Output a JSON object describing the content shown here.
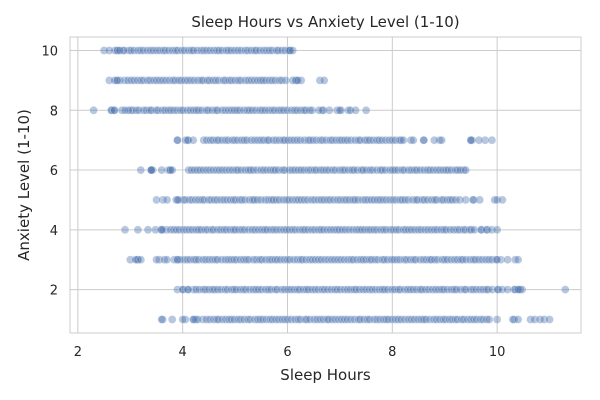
{
  "chart_data": {
    "type": "scatter",
    "title": "Sleep Hours vs Anxiety Level (1-10)",
    "xlabel": "Sleep Hours",
    "ylabel": "Anxiety Level (1-10)",
    "xlim": [
      1.85,
      11.6
    ],
    "ylim": [
      0.55,
      10.45
    ],
    "xticks": [
      2,
      4,
      6,
      8,
      10
    ],
    "yticks": [
      2,
      4,
      6,
      8,
      10
    ],
    "grid": true,
    "legend": "none",
    "point_color": "#4c72b0",
    "point_alpha": 0.4,
    "y_levels": [
      {
        "y": 10,
        "x_min": 2.5,
        "x_max": 6.1,
        "dense_min": 2.9,
        "dense_max": 6.0,
        "outliers": [
          2.5,
          2.6,
          2.75,
          2.8,
          6.05,
          6.1
        ]
      },
      {
        "y": 9,
        "x_min": 2.6,
        "x_max": 6.7,
        "dense_min": 2.9,
        "dense_max": 6.0,
        "outliers": [
          2.6,
          2.7,
          2.75,
          6.1,
          6.2,
          6.7
        ]
      },
      {
        "y": 8,
        "x_min": 2.3,
        "x_max": 7.5,
        "dense_min": 3.0,
        "dense_max": 6.5,
        "outliers": [
          2.3,
          2.7,
          2.9,
          6.6,
          6.8,
          7.0,
          7.2,
          7.3,
          7.5
        ]
      },
      {
        "y": 7,
        "x_min": 3.9,
        "x_max": 9.9,
        "dense_min": 4.4,
        "dense_max": 8.2,
        "outliers": [
          3.9,
          4.1,
          4.2,
          8.4,
          8.6,
          8.8,
          9.5,
          9.9
        ]
      },
      {
        "y": 6,
        "x_min": 3.2,
        "x_max": 9.4,
        "dense_min": 4.1,
        "dense_max": 9.2,
        "outliers": [
          3.2,
          3.4,
          3.6,
          3.8,
          9.3,
          9.4
        ]
      },
      {
        "y": 5,
        "x_min": 3.5,
        "x_max": 10.1,
        "dense_min": 4.0,
        "dense_max": 9.3,
        "outliers": [
          3.5,
          3.7,
          3.9,
          9.4,
          10.0,
          10.1
        ]
      },
      {
        "y": 4,
        "x_min": 2.9,
        "x_max": 10.0,
        "dense_min": 3.7,
        "dense_max": 9.6,
        "outliers": [
          2.9,
          3.6,
          9.7,
          9.8,
          9.9,
          10.0
        ]
      },
      {
        "y": 3,
        "x_min": 3.0,
        "x_max": 10.4,
        "dense_min": 3.9,
        "dense_max": 9.9,
        "outliers": [
          3.0,
          3.1,
          3.2,
          3.5,
          3.7,
          10.0,
          10.2,
          10.4
        ]
      },
      {
        "y": 2,
        "x_min": 3.9,
        "x_max": 11.3,
        "dense_min": 4.2,
        "dense_max": 9.9,
        "outliers": [
          3.9,
          4.0,
          4.1,
          10.1,
          10.2,
          10.4,
          11.3
        ]
      },
      {
        "y": 1,
        "x_min": 3.6,
        "x_max": 11.0,
        "dense_min": 4.4,
        "dense_max": 9.9,
        "outliers": [
          3.6,
          3.8,
          4.0,
          4.2,
          10.0,
          10.3,
          10.4,
          11.0
        ]
      }
    ]
  }
}
